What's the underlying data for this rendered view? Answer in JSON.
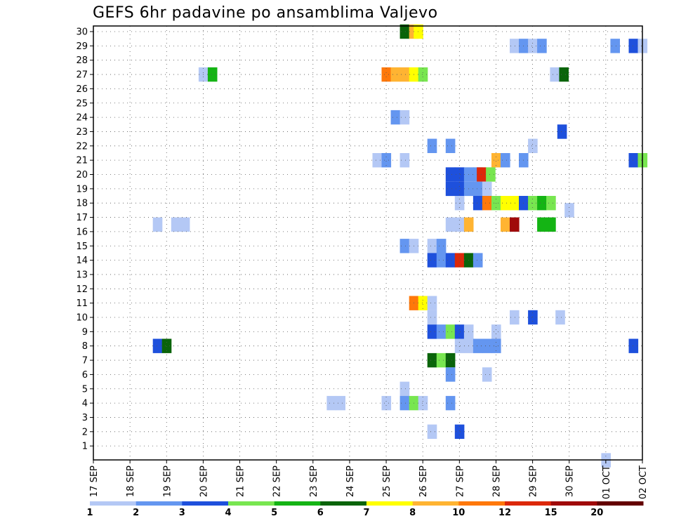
{
  "chart_data": {
    "type": "heatmap",
    "title": "GEFS 6hr padavine po ansamblima Valjevo",
    "y_ticks": [
      1,
      2,
      3,
      4,
      5,
      6,
      7,
      8,
      9,
      10,
      11,
      12,
      13,
      14,
      15,
      16,
      17,
      18,
      19,
      20,
      21,
      22,
      23,
      24,
      25,
      26,
      27,
      28,
      29,
      30
    ],
    "x_ticks": [
      "17 SEP",
      "18 SEP",
      "19 SEP",
      "20 SEP",
      "21 SEP",
      "22 SEP",
      "23 SEP",
      "24 SEP",
      "25 SEP",
      "26 SEP",
      "27 SEP",
      "28 SEP",
      "29 SEP",
      "30 SEP",
      "01 OCT",
      "02 OCT"
    ],
    "grid": true,
    "legend": {
      "placement": "bottom",
      "labels": [
        "1",
        "2",
        "3",
        "4",
        "5",
        "6",
        "7",
        "8",
        "10",
        "12",
        "15",
        "20"
      ],
      "colors": [
        "#b4c8f5",
        "#6496f0",
        "#1e50dc",
        "#78e650",
        "#14b414",
        "#0a640a",
        "#ffff00",
        "#ffb432",
        "#ff780a",
        "#dc280a",
        "#a00a0a",
        "#640000"
      ]
    },
    "units_note": "x in days since 17 SEP 00z (6-hour steps = 0.25), y = ensemble member, v = color class index 0..11",
    "cells": [
      {
        "x": 8.5,
        "y": 30,
        "v": 5
      },
      {
        "x": 8.75,
        "y": 30,
        "v": 7
      },
      {
        "x": 8.875,
        "y": 30,
        "v": 6
      },
      {
        "x": 11.5,
        "y": 29,
        "v": 0
      },
      {
        "x": 11.75,
        "y": 29,
        "v": 1
      },
      {
        "x": 12.0,
        "y": 29,
        "v": 0
      },
      {
        "x": 12.25,
        "y": 29,
        "v": 1
      },
      {
        "x": 14.25,
        "y": 29,
        "v": 1
      },
      {
        "x": 14.75,
        "y": 29,
        "v": 2
      },
      {
        "x": 15.0,
        "y": 29,
        "v": 0
      },
      {
        "x": 3.0,
        "y": 27,
        "v": 0
      },
      {
        "x": 3.25,
        "y": 27,
        "v": 4
      },
      {
        "x": 8.0,
        "y": 27,
        "v": 8
      },
      {
        "x": 8.25,
        "y": 27,
        "v": 7
      },
      {
        "x": 8.5,
        "y": 27,
        "v": 7
      },
      {
        "x": 8.75,
        "y": 27,
        "v": 6
      },
      {
        "x": 9.0,
        "y": 27,
        "v": 3
      },
      {
        "x": 12.6,
        "y": 27,
        "v": 0
      },
      {
        "x": 12.85,
        "y": 27,
        "v": 5
      },
      {
        "x": 8.25,
        "y": 24,
        "v": 1
      },
      {
        "x": 8.5,
        "y": 24,
        "v": 0
      },
      {
        "x": 12.8,
        "y": 23,
        "v": 2
      },
      {
        "x": 9.25,
        "y": 22,
        "v": 1
      },
      {
        "x": 9.75,
        "y": 22,
        "v": 1
      },
      {
        "x": 12.0,
        "y": 22,
        "v": 0
      },
      {
        "x": 7.75,
        "y": 21,
        "v": 0
      },
      {
        "x": 8.0,
        "y": 21,
        "v": 1
      },
      {
        "x": 8.5,
        "y": 21,
        "v": 0
      },
      {
        "x": 11.0,
        "y": 21,
        "v": 7
      },
      {
        "x": 11.25,
        "y": 21,
        "v": 1
      },
      {
        "x": 11.75,
        "y": 21,
        "v": 1
      },
      {
        "x": 14.75,
        "y": 21,
        "v": 2
      },
      {
        "x": 15.0,
        "y": 21,
        "v": 3
      },
      {
        "x": 9.75,
        "y": 20,
        "v": 2
      },
      {
        "x": 10.0,
        "y": 20,
        "v": 2
      },
      {
        "x": 10.25,
        "y": 20,
        "v": 1
      },
      {
        "x": 10.5,
        "y": 20,
        "v": 1
      },
      {
        "x": 10.6,
        "y": 20,
        "v": 9
      },
      {
        "x": 10.85,
        "y": 20,
        "v": 3
      },
      {
        "x": 9.75,
        "y": 19,
        "v": 2
      },
      {
        "x": 10.0,
        "y": 19,
        "v": 2
      },
      {
        "x": 10.25,
        "y": 19,
        "v": 1
      },
      {
        "x": 10.5,
        "y": 19,
        "v": 1
      },
      {
        "x": 10.75,
        "y": 19,
        "v": 0
      },
      {
        "x": 10.0,
        "y": 18,
        "v": 0
      },
      {
        "x": 10.5,
        "y": 18,
        "v": 2
      },
      {
        "x": 10.75,
        "y": 18,
        "v": 8
      },
      {
        "x": 11.0,
        "y": 18,
        "v": 3
      },
      {
        "x": 11.25,
        "y": 18,
        "v": 6
      },
      {
        "x": 11.5,
        "y": 18,
        "v": 6
      },
      {
        "x": 11.75,
        "y": 18,
        "v": 2
      },
      {
        "x": 12.0,
        "y": 18,
        "v": 3
      },
      {
        "x": 12.25,
        "y": 18,
        "v": 4
      },
      {
        "x": 12.5,
        "y": 18,
        "v": 3
      },
      {
        "x": 13.0,
        "y": 17.5,
        "v": 0
      },
      {
        "x": 1.75,
        "y": 16.5,
        "v": 0
      },
      {
        "x": 2.25,
        "y": 16.5,
        "v": 0
      },
      {
        "x": 2.5,
        "y": 16.5,
        "v": 0
      },
      {
        "x": 9.75,
        "y": 16.5,
        "v": 0
      },
      {
        "x": 10.0,
        "y": 16.5,
        "v": 0
      },
      {
        "x": 10.25,
        "y": 16.5,
        "v": 7
      },
      {
        "x": 11.25,
        "y": 16.5,
        "v": 7
      },
      {
        "x": 11.5,
        "y": 16.5,
        "v": 10
      },
      {
        "x": 12.25,
        "y": 16.5,
        "v": 4
      },
      {
        "x": 12.5,
        "y": 16.5,
        "v": 4
      },
      {
        "x": 8.5,
        "y": 15,
        "v": 1
      },
      {
        "x": 8.75,
        "y": 15,
        "v": 0
      },
      {
        "x": 9.25,
        "y": 15,
        "v": 0
      },
      {
        "x": 9.5,
        "y": 15,
        "v": 1
      },
      {
        "x": 9.25,
        "y": 14,
        "v": 2
      },
      {
        "x": 9.5,
        "y": 14,
        "v": 1
      },
      {
        "x": 9.75,
        "y": 14,
        "v": 2
      },
      {
        "x": 10.0,
        "y": 14,
        "v": 9
      },
      {
        "x": 10.25,
        "y": 14,
        "v": 5
      },
      {
        "x": 10.5,
        "y": 14,
        "v": 1
      },
      {
        "x": 8.75,
        "y": 11,
        "v": 8
      },
      {
        "x": 9.0,
        "y": 11,
        "v": 6
      },
      {
        "x": 9.25,
        "y": 11,
        "v": 0
      },
      {
        "x": 9.25,
        "y": 10,
        "v": 0
      },
      {
        "x": 11.5,
        "y": 10,
        "v": 0
      },
      {
        "x": 12.0,
        "y": 10,
        "v": 2
      },
      {
        "x": 12.75,
        "y": 10,
        "v": 0
      },
      {
        "x": 9.25,
        "y": 9,
        "v": 2
      },
      {
        "x": 9.5,
        "y": 9,
        "v": 1
      },
      {
        "x": 9.75,
        "y": 9,
        "v": 3
      },
      {
        "x": 10.0,
        "y": 9,
        "v": 2
      },
      {
        "x": 10.25,
        "y": 9,
        "v": 0
      },
      {
        "x": 11.0,
        "y": 9,
        "v": 0
      },
      {
        "x": 1.75,
        "y": 8,
        "v": 2
      },
      {
        "x": 2.0,
        "y": 8,
        "v": 5
      },
      {
        "x": 10.0,
        "y": 8,
        "v": 0
      },
      {
        "x": 10.25,
        "y": 8,
        "v": 0
      },
      {
        "x": 10.5,
        "y": 8,
        "v": 1
      },
      {
        "x": 10.75,
        "y": 8,
        "v": 1
      },
      {
        "x": 11.0,
        "y": 8,
        "v": 1
      },
      {
        "x": 14.75,
        "y": 8,
        "v": 2
      },
      {
        "x": 9.25,
        "y": 7,
        "v": 5
      },
      {
        "x": 9.5,
        "y": 7,
        "v": 3
      },
      {
        "x": 9.75,
        "y": 7,
        "v": 5
      },
      {
        "x": 9.75,
        "y": 6,
        "v": 1
      },
      {
        "x": 10.75,
        "y": 6,
        "v": 0
      },
      {
        "x": 8.5,
        "y": 5,
        "v": 0
      },
      {
        "x": 6.5,
        "y": 4,
        "v": 0
      },
      {
        "x": 6.75,
        "y": 4,
        "v": 0
      },
      {
        "x": 8.0,
        "y": 4,
        "v": 0
      },
      {
        "x": 8.5,
        "y": 4,
        "v": 1
      },
      {
        "x": 8.75,
        "y": 4,
        "v": 3
      },
      {
        "x": 9.0,
        "y": 4,
        "v": 0
      },
      {
        "x": 9.75,
        "y": 4,
        "v": 1
      },
      {
        "x": 9.25,
        "y": 2,
        "v": 0
      },
      {
        "x": 10.0,
        "y": 2,
        "v": 2
      },
      {
        "x": 14.0,
        "y": 0,
        "v": 0
      }
    ]
  }
}
